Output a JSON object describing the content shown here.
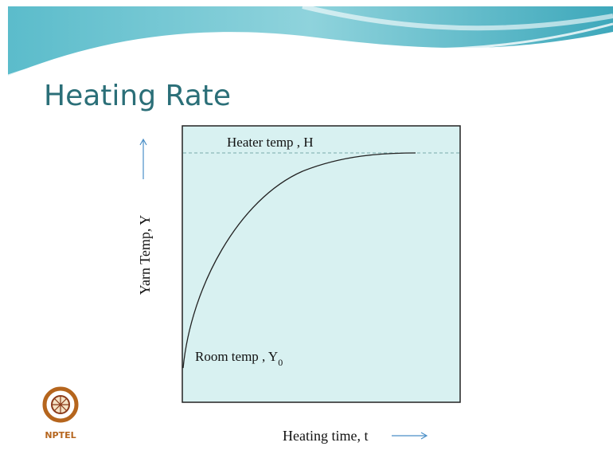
{
  "slide": {
    "title": "Heating Rate",
    "diagram": {
      "top_label": "Heater temp , H",
      "bottom_label": "Room temp , Y",
      "bottom_label_subscript": "0",
      "y_axis_label": "Yarn Temp, Y",
      "x_axis_label": "Heating time, t"
    },
    "logo": "NPTEL"
  }
}
